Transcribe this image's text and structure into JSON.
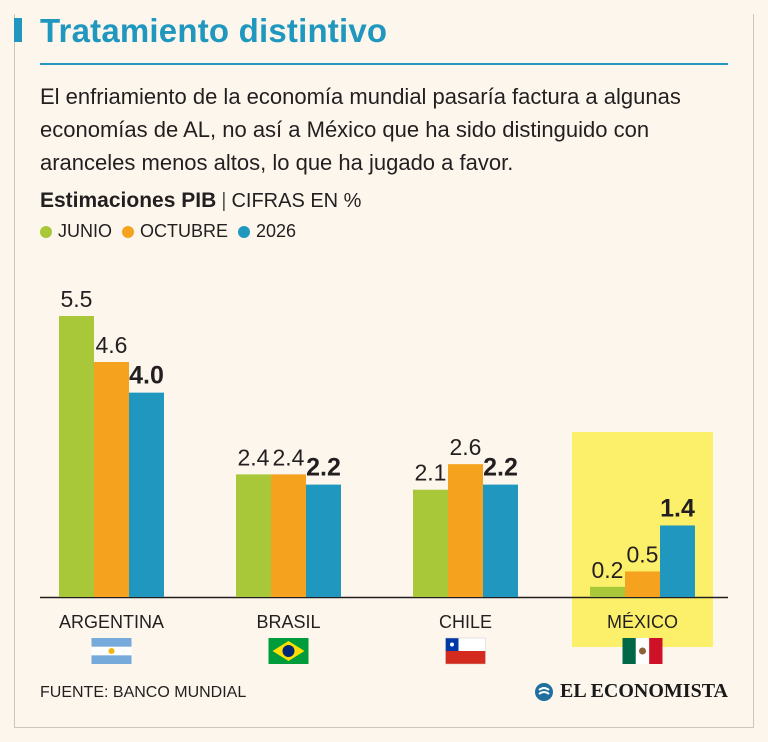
{
  "header": {
    "title": "Tratamiento distintivo",
    "intro": "El enfriamiento de la economía mundial pasaría factura a algunas economías de AL, no así a México que ha sido distinguido con aranceles menos altos, lo que ha jugado a favor.",
    "subtitle_bold": "Estimaciones PIB",
    "subtitle_sep": "|",
    "subtitle_rest": "CIFRAS EN %"
  },
  "footer": {
    "source": "FUENTE: BANCO MUNDIAL",
    "brand": "EL ECONOMISTA"
  },
  "colors": {
    "junio": "#a8c83a",
    "octubre": "#f5a21e",
    "s2026": "#1f97bf",
    "highlight": "#fcf06b",
    "title": "#1f97bf"
  },
  "chart_data": {
    "type": "bar",
    "title": "Estimaciones PIB",
    "ylabel": "CIFRAS EN %",
    "xlabel": "",
    "ylim": [
      0,
      5.5
    ],
    "categories": [
      "ARGENTINA",
      "BRASIL",
      "CHILE",
      "MÉXICO"
    ],
    "flags": [
      "argentina",
      "brazil",
      "chile",
      "mexico"
    ],
    "highlight_category": "MÉXICO",
    "series": [
      {
        "name": "JUNIO",
        "values": [
          5.5,
          2.4,
          2.1,
          0.2
        ],
        "labels": [
          "5.5",
          "2.4",
          "2.1",
          "0.2"
        ],
        "color_key": "junio",
        "bold": false
      },
      {
        "name": "OCTUBRE",
        "values": [
          4.6,
          2.4,
          2.6,
          0.5
        ],
        "labels": [
          "4.6",
          "2.4",
          "2.6",
          "0.5"
        ],
        "color_key": "octubre",
        "bold": false
      },
      {
        "name": "2026",
        "values": [
          4.0,
          2.2,
          2.2,
          1.4
        ],
        "labels": [
          "4.0",
          "2.2",
          "2.2",
          "1.4"
        ],
        "color_key": "s2026",
        "bold": true
      }
    ],
    "legend_position": "top-left",
    "grid": false
  }
}
